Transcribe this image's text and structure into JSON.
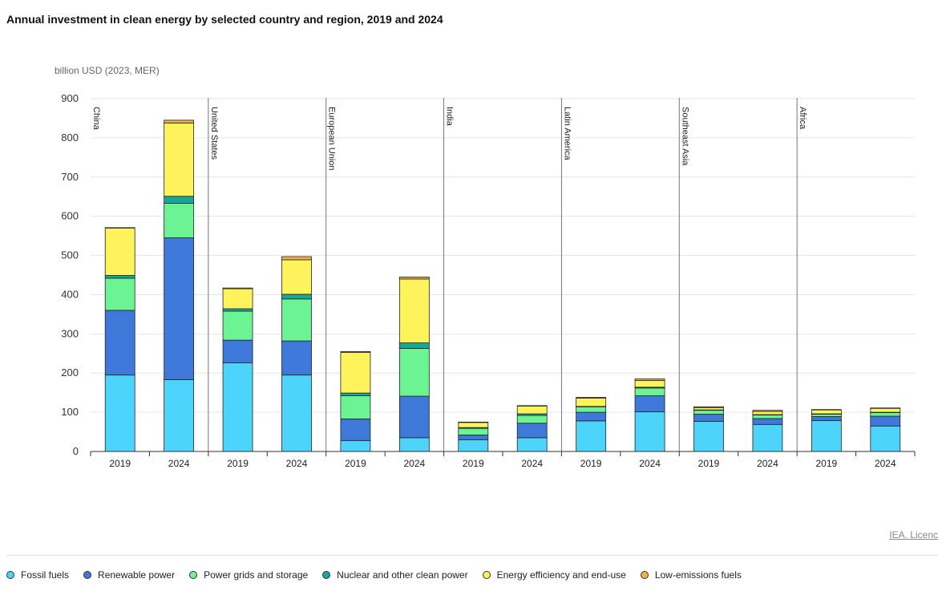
{
  "title": "Annual investment in clean energy by selected country and region, 2019 and 2024",
  "licence": "IEA. Licenc",
  "chart_data": {
    "type": "bar",
    "stacked": true,
    "ylabel": "billion USD (2023, MER)",
    "ylim": [
      0,
      900
    ],
    "yticks": [
      0,
      100,
      200,
      300,
      400,
      500,
      600,
      700,
      800,
      900
    ],
    "grid": true,
    "legend_position": "bottom",
    "groups": [
      "China",
      "United States",
      "European Union",
      "India",
      "Latin America",
      "Southeast Asia",
      "Africa"
    ],
    "years": [
      "2019",
      "2024"
    ],
    "series": [
      {
        "name": "Fossil fuels",
        "color": "#4dd4fa",
        "values": [
          [
            195,
            183
          ],
          [
            226,
            195
          ],
          [
            28,
            35
          ],
          [
            30,
            35
          ],
          [
            78,
            101
          ],
          [
            77,
            69
          ],
          [
            79,
            65
          ]
        ]
      },
      {
        "name": "Renewable power",
        "color": "#3e78d8",
        "values": [
          [
            165,
            362
          ],
          [
            58,
            87
          ],
          [
            55,
            106
          ],
          [
            12,
            37
          ],
          [
            22,
            41
          ],
          [
            18,
            15
          ],
          [
            10,
            25
          ]
        ]
      },
      {
        "name": "Power grids and storage",
        "color": "#6cf494",
        "values": [
          [
            82,
            88
          ],
          [
            74,
            107
          ],
          [
            59,
            122
          ],
          [
            17,
            20
          ],
          [
            14,
            20
          ],
          [
            10,
            9
          ],
          [
            6,
            9
          ]
        ]
      },
      {
        "name": "Nuclear and other clean power",
        "color": "#16a99a",
        "values": [
          [
            7,
            18
          ],
          [
            6,
            12
          ],
          [
            7,
            14
          ],
          [
            2,
            4
          ],
          [
            1,
            2
          ],
          [
            1,
            1
          ],
          [
            1,
            1
          ]
        ]
      },
      {
        "name": "Energy efficiency and end-use",
        "color": "#fdf35a",
        "values": [
          [
            121,
            187
          ],
          [
            51,
            88
          ],
          [
            104,
            163
          ],
          [
            13,
            20
          ],
          [
            21,
            17
          ],
          [
            6,
            8
          ],
          [
            10,
            10
          ]
        ]
      },
      {
        "name": "Low-emissions fuels",
        "color": "#f7b045",
        "values": [
          [
            1,
            7
          ],
          [
            2,
            8
          ],
          [
            2,
            5
          ],
          [
            1,
            1
          ],
          [
            2,
            4
          ],
          [
            2,
            3
          ],
          [
            1,
            1
          ]
        ]
      }
    ]
  }
}
